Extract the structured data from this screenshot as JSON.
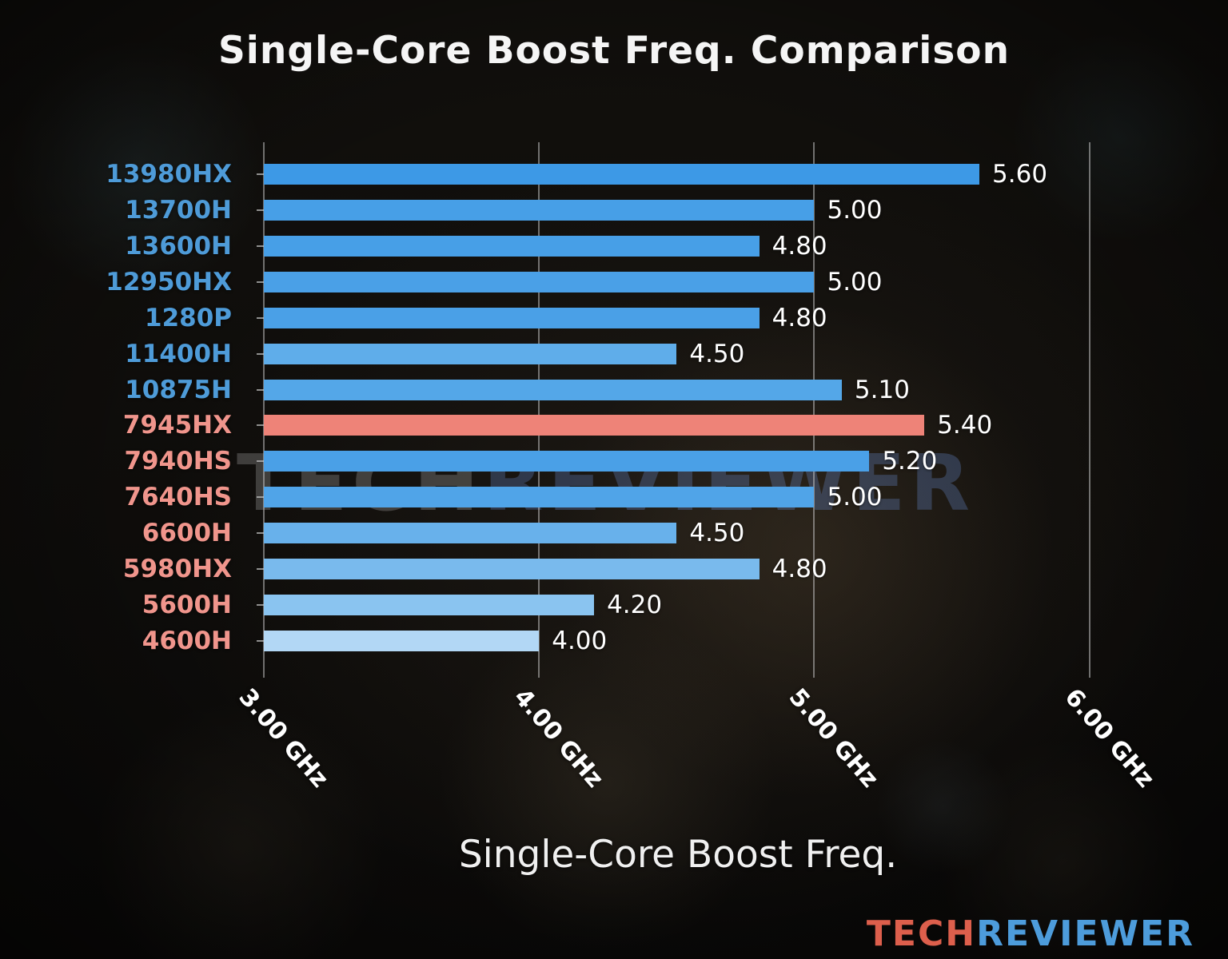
{
  "watermark": {
    "part1": "TECH",
    "part2": "REVIEWER"
  },
  "logo": {
    "part1": "TECH",
    "part2": "REVIEWER"
  },
  "chart_data": {
    "type": "bar",
    "orientation": "horizontal",
    "title": "Single-Core Boost Freq. Comparison",
    "xlabel": "Single-Core Boost Freq.",
    "unit": "GHz",
    "xlim": [
      3.0,
      6.3
    ],
    "grid": true,
    "xticks": [
      "3.00 GHz",
      "4.00 GHz",
      "5.00 GHz",
      "6.00 GHz"
    ],
    "xtick_values": [
      3.0,
      4.0,
      5.0,
      6.0
    ],
    "categories": [
      "13980HX",
      "13700H",
      "13600H",
      "12950HX",
      "1280P",
      "11400H",
      "10875H",
      "7945HX",
      "7940HS",
      "7640HS",
      "6600H",
      "5980HX",
      "5600H",
      "4600H"
    ],
    "values": [
      5.6,
      5.0,
      4.8,
      5.0,
      4.8,
      4.5,
      5.1,
      5.4,
      5.2,
      5.0,
      4.5,
      4.8,
      4.2,
      4.0
    ],
    "value_labels": [
      "5.60",
      "5.00",
      "4.80",
      "5.00",
      "4.80",
      "4.50",
      "5.10",
      "5.40",
      "5.20",
      "5.00",
      "4.50",
      "4.80",
      "4.20",
      "4.00"
    ],
    "bar_colors": [
      "#3d99e6",
      "#479fe7",
      "#479fe7",
      "#4aa0e7",
      "#4aa0e7",
      "#5fadea",
      "#54a7e8",
      "#ee8378",
      "#4aa0e7",
      "#50a4e8",
      "#68b1eb",
      "#79baed",
      "#8ac4f0",
      "#b2d7f5"
    ],
    "label_colors": [
      "#4e9bd8",
      "#4e9bd8",
      "#4e9bd8",
      "#4e9bd8",
      "#4e9bd8",
      "#4e9bd8",
      "#4e9bd8",
      "#f0958c",
      "#f0958c",
      "#f0958c",
      "#f0958c",
      "#f0958c",
      "#f0958c",
      "#f0958c"
    ],
    "highlight_color": "#ee8378",
    "legend": "none"
  }
}
